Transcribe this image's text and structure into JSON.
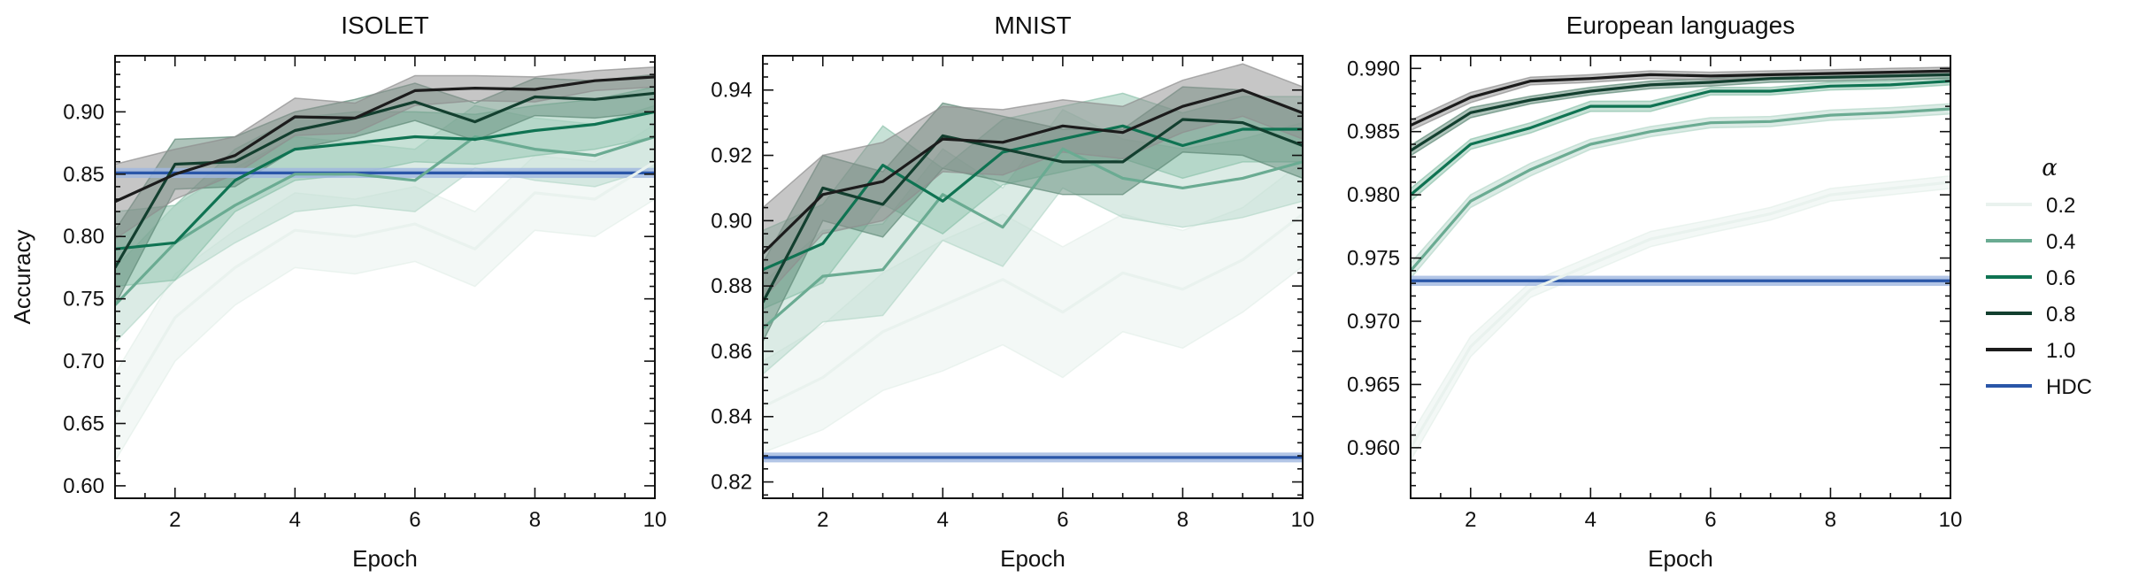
{
  "chart_data": [
    {
      "type": "line",
      "title": "ISOLET",
      "xlabel": "Epoch",
      "ylabel": "Accuracy",
      "xlim": [
        1,
        10
      ],
      "ylim": [
        0.59,
        0.945
      ],
      "xticks": [
        2,
        4,
        6,
        8,
        10
      ],
      "yticks": [
        0.6,
        0.65,
        0.7,
        0.75,
        0.8,
        0.85,
        0.9
      ],
      "ytick_labels": [
        "0.60",
        "0.65",
        "0.70",
        "0.75",
        "0.80",
        "0.85",
        "0.90"
      ],
      "x": [
        1,
        2,
        3,
        4,
        5,
        6,
        7,
        8,
        9,
        10
      ],
      "series": [
        {
          "name": "0.2",
          "values": [
            0.655,
            0.735,
            0.775,
            0.805,
            0.8,
            0.81,
            0.79,
            0.835,
            0.83,
            0.86
          ],
          "band": [
            0.035,
            0.035,
            0.03,
            0.03,
            0.03,
            0.03,
            0.03,
            0.03,
            0.03,
            0.03
          ]
        },
        {
          "name": "0.4",
          "values": [
            0.745,
            0.795,
            0.825,
            0.85,
            0.85,
            0.845,
            0.88,
            0.87,
            0.865,
            0.88
          ],
          "band": [
            0.03,
            0.03,
            0.03,
            0.03,
            0.025,
            0.025,
            0.025,
            0.025,
            0.025,
            0.025
          ]
        },
        {
          "name": "0.6",
          "values": [
            0.79,
            0.795,
            0.845,
            0.87,
            0.875,
            0.88,
            0.878,
            0.885,
            0.89,
            0.9
          ],
          "band": [
            0.03,
            0.03,
            0.025,
            0.025,
            0.025,
            0.02,
            0.02,
            0.02,
            0.02,
            0.02
          ]
        },
        {
          "name": "0.8",
          "values": [
            0.775,
            0.858,
            0.86,
            0.885,
            0.895,
            0.908,
            0.892,
            0.912,
            0.91,
            0.915
          ],
          "band": [
            0.03,
            0.02,
            0.02,
            0.015,
            0.015,
            0.015,
            0.015,
            0.015,
            0.015,
            0.015
          ]
        },
        {
          "name": "1.0",
          "values": [
            0.828,
            0.85,
            0.865,
            0.896,
            0.895,
            0.917,
            0.919,
            0.918,
            0.925,
            0.928
          ],
          "band": [
            0.03,
            0.02,
            0.015,
            0.015,
            0.012,
            0.012,
            0.01,
            0.01,
            0.008,
            0.008
          ]
        }
      ],
      "hdc": {
        "name": "HDC",
        "value": 0.851,
        "band": 0.004
      }
    },
    {
      "type": "line",
      "title": "MNIST",
      "xlabel": "Epoch",
      "ylabel": "",
      "xlim": [
        1,
        10
      ],
      "ylim": [
        0.815,
        0.9505
      ],
      "xticks": [
        2,
        4,
        6,
        8,
        10
      ],
      "yticks": [
        0.82,
        0.84,
        0.86,
        0.88,
        0.9,
        0.92,
        0.94
      ],
      "ytick_labels": [
        "0.82",
        "0.84",
        "0.86",
        "0.88",
        "0.90",
        "0.92",
        "0.94"
      ],
      "x": [
        1,
        2,
        3,
        4,
        5,
        6,
        7,
        8,
        9,
        10
      ],
      "series": [
        {
          "name": "0.2",
          "values": [
            0.843,
            0.852,
            0.866,
            0.874,
            0.882,
            0.872,
            0.884,
            0.879,
            0.888,
            0.902
          ],
          "band": [
            0.014,
            0.016,
            0.018,
            0.02,
            0.02,
            0.02,
            0.018,
            0.018,
            0.016,
            0.016
          ]
        },
        {
          "name": "0.4",
          "values": [
            0.867,
            0.883,
            0.885,
            0.908,
            0.898,
            0.922,
            0.913,
            0.91,
            0.913,
            0.918
          ],
          "band": [
            0.014,
            0.014,
            0.014,
            0.014,
            0.012,
            0.012,
            0.012,
            0.012,
            0.012,
            0.012
          ]
        },
        {
          "name": "0.6",
          "values": [
            0.885,
            0.893,
            0.917,
            0.906,
            0.921,
            0.925,
            0.929,
            0.923,
            0.928,
            0.928
          ],
          "band": [
            0.012,
            0.012,
            0.012,
            0.01,
            0.01,
            0.01,
            0.01,
            0.01,
            0.01,
            0.01
          ]
        },
        {
          "name": "0.8",
          "values": [
            0.875,
            0.91,
            0.905,
            0.926,
            0.922,
            0.918,
            0.918,
            0.931,
            0.93,
            0.923
          ],
          "band": [
            0.012,
            0.01,
            0.01,
            0.01,
            0.01,
            0.01,
            0.01,
            0.01,
            0.01,
            0.01
          ]
        },
        {
          "name": "1.0",
          "values": [
            0.89,
            0.908,
            0.912,
            0.925,
            0.924,
            0.929,
            0.927,
            0.935,
            0.94,
            0.933
          ],
          "band": [
            0.014,
            0.012,
            0.012,
            0.01,
            0.01,
            0.008,
            0.008,
            0.008,
            0.008,
            0.008
          ]
        }
      ],
      "hdc": {
        "name": "HDC",
        "value": 0.8275,
        "band": 0.0015
      }
    },
    {
      "type": "line",
      "title": "European languages",
      "xlabel": "Epoch",
      "ylabel": "",
      "xlim": [
        1,
        10
      ],
      "ylim": [
        0.956,
        0.991
      ],
      "xticks": [
        2,
        4,
        6,
        8,
        10
      ],
      "yticks": [
        0.96,
        0.965,
        0.97,
        0.975,
        0.98,
        0.985,
        0.99
      ],
      "ytick_labels": [
        "0.960",
        "0.965",
        "0.970",
        "0.975",
        "0.980",
        "0.985",
        "0.990"
      ],
      "x": [
        1,
        2,
        3,
        4,
        5,
        6,
        7,
        8,
        9,
        10
      ],
      "series": [
        {
          "name": "0.2",
          "values": [
            0.96,
            0.968,
            0.9725,
            0.9745,
            0.9765,
            0.9775,
            0.9785,
            0.98,
            0.9805,
            0.981
          ],
          "band": [
            0.001,
            0.0008,
            0.0006,
            0.0006,
            0.0006,
            0.0005,
            0.0005,
            0.0005,
            0.0005,
            0.0005
          ]
        },
        {
          "name": "0.4",
          "values": [
            0.974,
            0.9795,
            0.982,
            0.984,
            0.985,
            0.9857,
            0.9858,
            0.9863,
            0.9865,
            0.9868
          ],
          "band": [
            0.0006,
            0.0005,
            0.0005,
            0.0004,
            0.0004,
            0.0004,
            0.0004,
            0.0004,
            0.0004,
            0.0004
          ]
        },
        {
          "name": "0.6",
          "values": [
            0.98,
            0.984,
            0.9853,
            0.987,
            0.987,
            0.9882,
            0.9882,
            0.9886,
            0.9887,
            0.989
          ],
          "band": [
            0.0005,
            0.0004,
            0.0004,
            0.0004,
            0.0004,
            0.0003,
            0.0003,
            0.0003,
            0.0003,
            0.0003
          ]
        },
        {
          "name": "0.8",
          "values": [
            0.9835,
            0.9865,
            0.9875,
            0.9882,
            0.9887,
            0.9889,
            0.9892,
            0.9893,
            0.9894,
            0.9895
          ],
          "band": [
            0.0004,
            0.0004,
            0.0003,
            0.0003,
            0.0003,
            0.0003,
            0.0003,
            0.0003,
            0.0003,
            0.0003
          ]
        },
        {
          "name": "1.0",
          "values": [
            0.9855,
            0.9877,
            0.989,
            0.9892,
            0.9895,
            0.9894,
            0.9895,
            0.9896,
            0.9897,
            0.9898
          ],
          "band": [
            0.0004,
            0.0004,
            0.0003,
            0.0003,
            0.0003,
            0.0003,
            0.0003,
            0.0003,
            0.0003,
            0.0003
          ]
        }
      ],
      "hdc": {
        "name": "HDC",
        "value": 0.9732,
        "band": 0.0004
      }
    }
  ],
  "legend": {
    "title": "α",
    "entries": [
      {
        "label": "0.2",
        "color": "#e9f2ee"
      },
      {
        "label": "0.4",
        "color": "#6aab92"
      },
      {
        "label": "0.6",
        "color": "#0f7352"
      },
      {
        "label": "0.8",
        "color": "#133f2f"
      },
      {
        "label": "1.0",
        "color": "#1c1c1c"
      },
      {
        "label": "HDC",
        "color": "#2a56a8"
      }
    ]
  },
  "colors": {
    "series": [
      "#e9f2ee",
      "#6aab92",
      "#0f7352",
      "#133f2f",
      "#1c1c1c"
    ],
    "bands": [
      "#e4efea",
      "#b7d8cb",
      "#8fc3ad",
      "#5f8a78",
      "#8e8e8e"
    ],
    "hdc": "#2a56a8",
    "hdc_band": "#9fb6e0"
  }
}
